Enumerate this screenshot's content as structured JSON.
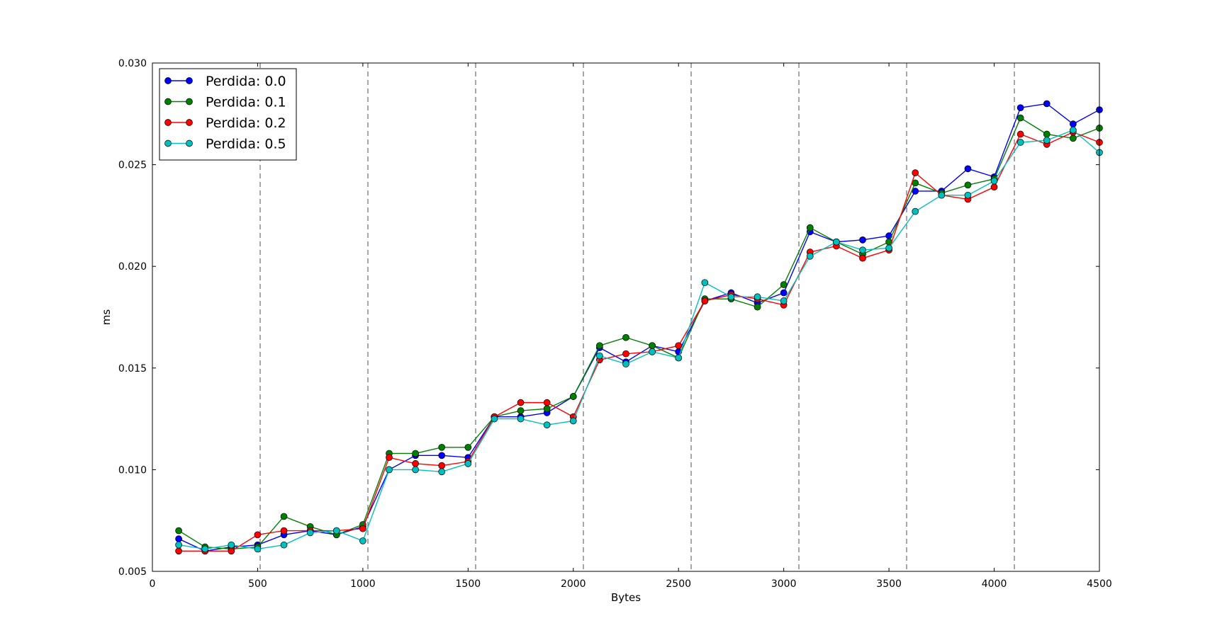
{
  "chart_data": {
    "type": "line",
    "title": "",
    "xlabel": "Bytes",
    "ylabel": "ms",
    "xlim": [
      0,
      4500
    ],
    "ylim": [
      0.005,
      0.03
    ],
    "xticks": [
      0,
      500,
      1000,
      1500,
      2000,
      2500,
      3000,
      3500,
      4000,
      4500
    ],
    "xtick_labels": [
      "0",
      "500",
      "1000",
      "1500",
      "2000",
      "2500",
      "3000",
      "3500",
      "4000",
      "4500"
    ],
    "yticks": [
      0.005,
      0.01,
      0.015,
      0.02,
      0.025,
      0.03
    ],
    "ytick_labels": [
      "0.005",
      "0.010",
      "0.015",
      "0.020",
      "0.025",
      "0.030"
    ],
    "grid": false,
    "vertical_reference_lines": [
      512,
      1024,
      1536,
      2048,
      2560,
      3072,
      3584,
      4096
    ],
    "legend_position": "top-left",
    "x": [
      125,
      250,
      375,
      500,
      625,
      750,
      875,
      1000,
      1125,
      1250,
      1375,
      1500,
      1625,
      1750,
      1875,
      2000,
      2125,
      2250,
      2375,
      2500,
      2625,
      2750,
      2875,
      3000,
      3125,
      3250,
      3375,
      3500,
      3625,
      3750,
      3875,
      4000,
      4125,
      4250,
      4375,
      4500
    ],
    "series": [
      {
        "name": "Perdida: 0.0",
        "color": "#0000ff",
        "values": [
          0.0066,
          0.006,
          0.0062,
          0.0063,
          0.0068,
          0.007,
          0.0068,
          0.0072,
          0.01,
          0.0107,
          0.0107,
          0.0106,
          0.0126,
          0.0126,
          0.0128,
          0.0136,
          0.016,
          0.0153,
          0.0161,
          0.0158,
          0.0183,
          0.0187,
          0.0182,
          0.0187,
          0.0217,
          0.0212,
          0.0213,
          0.0215,
          0.0237,
          0.0237,
          0.0248,
          0.0244,
          0.0278,
          0.028,
          0.027,
          0.0277
        ]
      },
      {
        "name": "Perdida: 0.1",
        "color": "#008000",
        "values": [
          0.007,
          0.0062,
          0.0061,
          0.0062,
          0.0077,
          0.0072,
          0.0068,
          0.0073,
          0.0108,
          0.0108,
          0.0111,
          0.0111,
          0.0126,
          0.0129,
          0.013,
          0.0136,
          0.0161,
          0.0165,
          0.0161,
          0.0155,
          0.0184,
          0.0184,
          0.018,
          0.0191,
          0.0219,
          0.0212,
          0.0206,
          0.0212,
          0.0241,
          0.0236,
          0.024,
          0.0243,
          0.0273,
          0.0265,
          0.0263,
          0.0268
        ]
      },
      {
        "name": "Perdida: 0.2",
        "color": "#ff0000",
        "values": [
          0.006,
          0.006,
          0.006,
          0.0068,
          0.007,
          0.007,
          0.007,
          0.0071,
          0.0106,
          0.0103,
          0.0102,
          0.0104,
          0.0126,
          0.0133,
          0.0133,
          0.0126,
          0.0154,
          0.0157,
          0.0158,
          0.0161,
          0.0183,
          0.0186,
          0.0184,
          0.0181,
          0.0207,
          0.021,
          0.0204,
          0.0208,
          0.0246,
          0.0235,
          0.0233,
          0.0239,
          0.0265,
          0.026,
          0.0266,
          0.0261
        ]
      },
      {
        "name": "Perdida: 0.5",
        "color": "#00bfbf",
        "values": [
          0.0063,
          0.0061,
          0.0063,
          0.0061,
          0.0063,
          0.0069,
          0.007,
          0.0065,
          0.01,
          0.01,
          0.0099,
          0.0103,
          0.0125,
          0.0125,
          0.0122,
          0.0124,
          0.0156,
          0.0152,
          0.0158,
          0.0155,
          0.0192,
          0.0185,
          0.0185,
          0.0183,
          0.0205,
          0.0212,
          0.0208,
          0.0209,
          0.0227,
          0.0235,
          0.0235,
          0.0242,
          0.0261,
          0.0262,
          0.0267,
          0.0256
        ]
      }
    ]
  }
}
